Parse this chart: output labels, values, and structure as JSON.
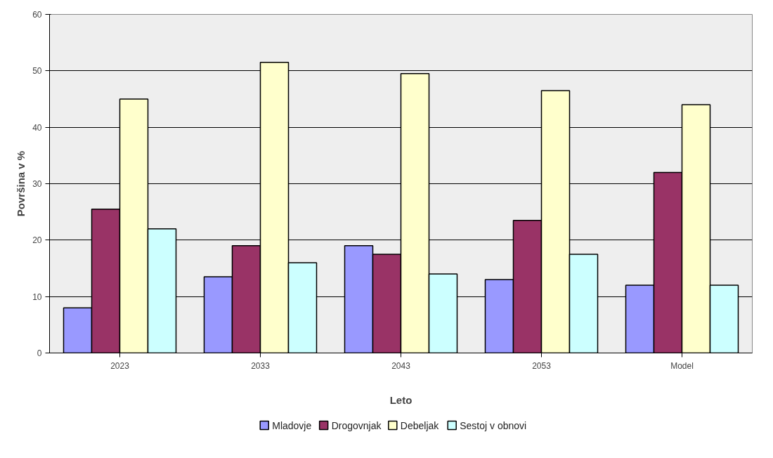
{
  "chart_data": {
    "type": "bar",
    "xlabel": "Leto",
    "ylabel": "Površina v %",
    "categories": [
      "2023",
      "2033",
      "2043",
      "2053",
      "Model"
    ],
    "series": [
      {
        "name": "Mladovje",
        "color": "#9999ff",
        "values": [
          8,
          13.5,
          19,
          13,
          12
        ]
      },
      {
        "name": "Drogovnjak",
        "color": "#993366",
        "values": [
          25.5,
          19,
          17.5,
          23.5,
          32
        ]
      },
      {
        "name": "Debeljak",
        "color": "#ffffcc",
        "values": [
          45,
          51.5,
          49.5,
          46.5,
          44
        ]
      },
      {
        "name": "Sestoj v obnovi",
        "color": "#ccffff",
        "values": [
          22,
          16,
          14,
          17.5,
          12
        ]
      }
    ],
    "ylim": [
      0,
      60
    ],
    "yticks": [
      0,
      10,
      20,
      30,
      40,
      50,
      60
    ],
    "grid": "y",
    "legend": "bottom"
  }
}
